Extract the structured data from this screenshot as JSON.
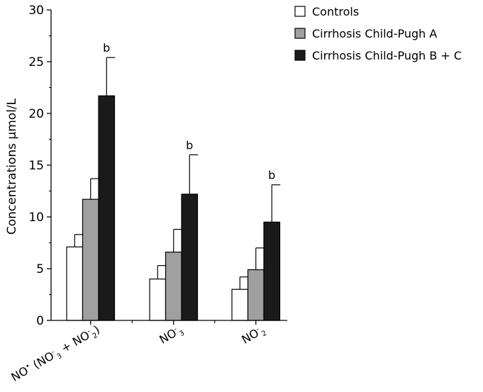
{
  "chart_data": {
    "type": "bar",
    "ylabel": "Concentrations μmol/L",
    "ylim": [
      0,
      30
    ],
    "yticks": [
      0,
      5,
      10,
      15,
      20,
      25,
      30
    ],
    "categories": [
      {
        "main": "NO",
        "sup_dot": "•",
        "paren_open": " (NO",
        "sup1": "-",
        "sub1": "3",
        "plus": " + NO",
        "sup2": "-",
        "sub2": "2",
        "paren_close": ")"
      },
      {
        "main": "NO",
        "sup": "-",
        "sub": "3"
      },
      {
        "main": "NO",
        "sup": "-",
        "sub": "2"
      }
    ],
    "series": [
      {
        "name": "Controls",
        "color": "#ffffff",
        "values": [
          7.1,
          4.0,
          3.0
        ],
        "errors": [
          1.2,
          1.3,
          1.2
        ]
      },
      {
        "name": "Cirrhosis Child-Pugh A",
        "color": "#a0a0a0",
        "values": [
          11.7,
          6.6,
          4.9
        ],
        "errors": [
          2.0,
          2.2,
          2.1
        ]
      },
      {
        "name": "Cirrhosis Child-Pugh B + C",
        "color": "#1a1a1a",
        "values": [
          21.7,
          12.2,
          9.5
        ],
        "errors": [
          3.7,
          3.8,
          3.6
        ]
      }
    ],
    "annotations": [
      {
        "series": 2,
        "category": 0,
        "text": "b"
      },
      {
        "series": 2,
        "category": 1,
        "text": "b"
      },
      {
        "series": 2,
        "category": 2,
        "text": "b"
      }
    ],
    "legend_position": "top-right",
    "grid": false
  }
}
